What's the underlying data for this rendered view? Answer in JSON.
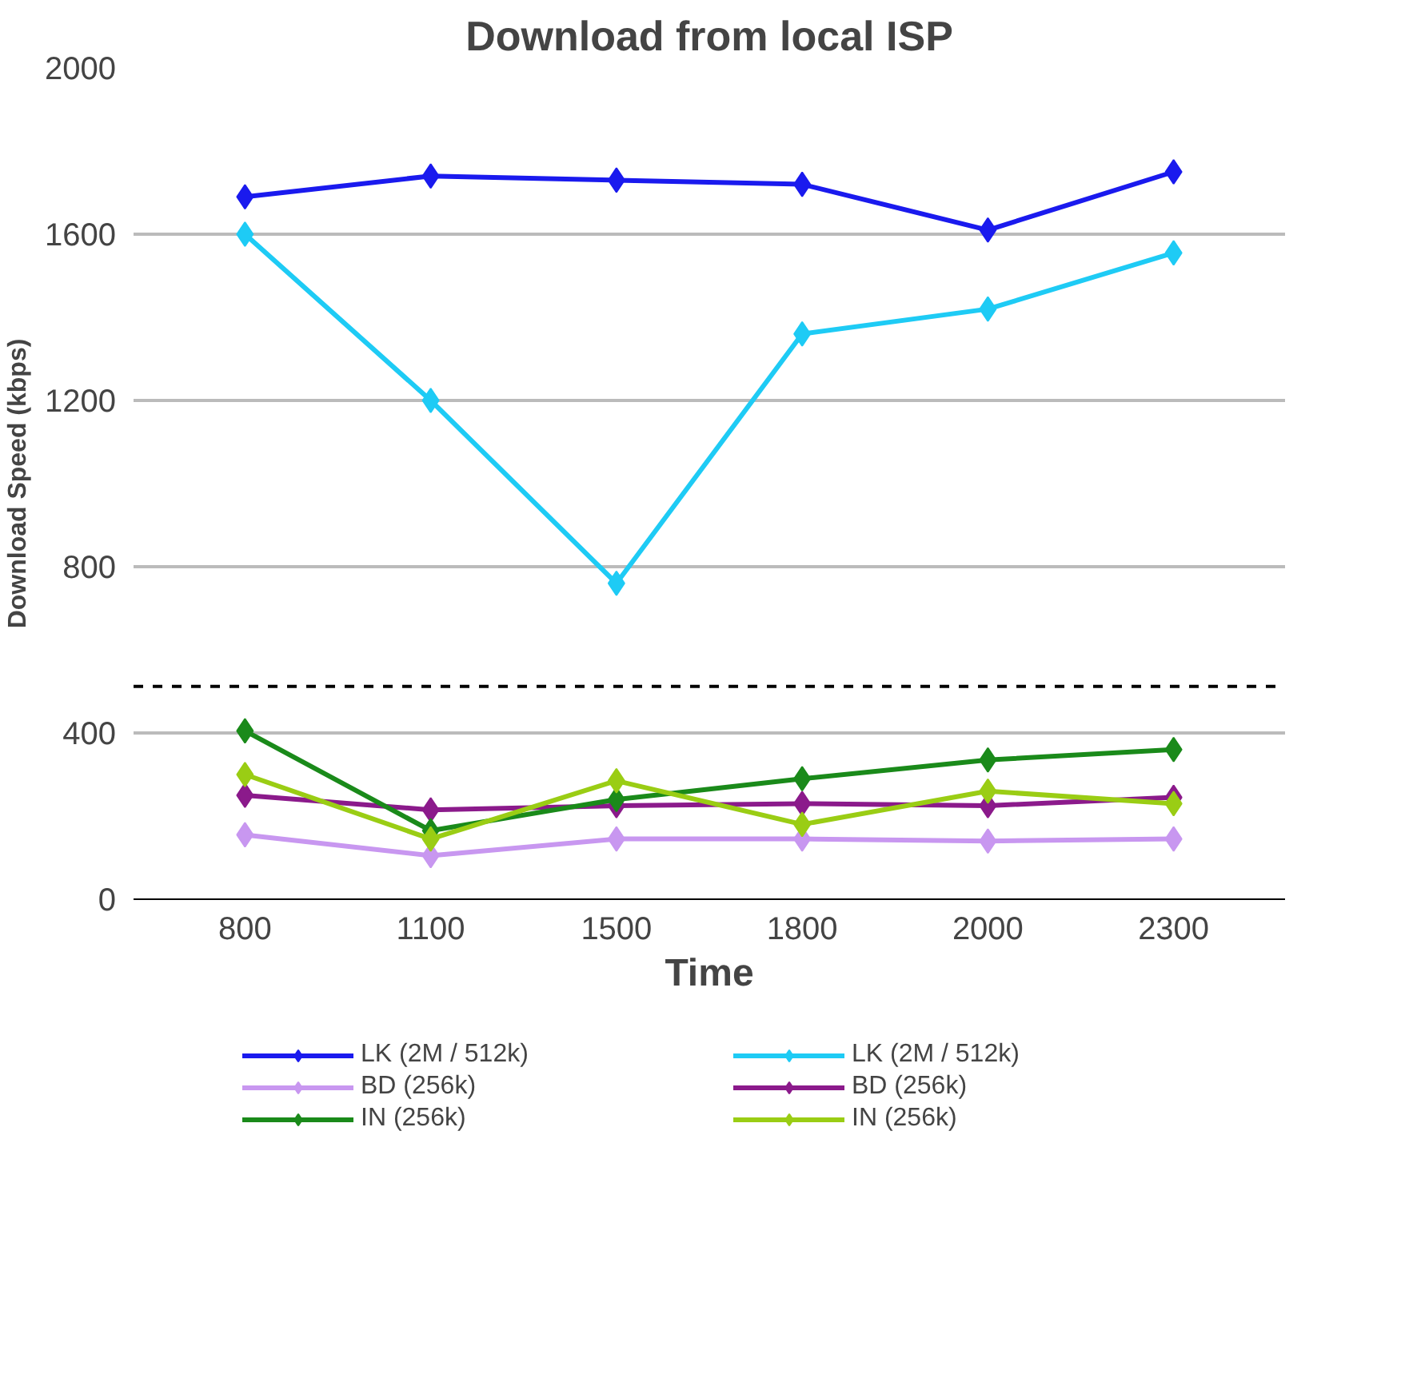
{
  "chart_data": {
    "type": "line",
    "title": "Download from local ISP",
    "xlabel": "Time",
    "ylabel": "Download Speed (kbps)",
    "categories": [
      "800",
      "1100",
      "1500",
      "1800",
      "2000",
      "2300"
    ],
    "ylim": [
      0,
      2000
    ],
    "yticks": [
      0,
      400,
      800,
      1200,
      1600,
      2000
    ],
    "grid": "y",
    "legend": "bottom",
    "marker": "diamond",
    "line_style": "solid",
    "ref_lines": [
      {
        "axis": "y",
        "value": 512,
        "label": null,
        "color": "#000000",
        "line_style": "dashed"
      }
    ],
    "series": [
      {
        "name": "LK (2M / 512k)",
        "color": "#1a1aee",
        "values": [
          1690,
          1740,
          1730,
          1720,
          1610,
          1750
        ]
      },
      {
        "name": "LK (2M / 512k)",
        "color": "#1ecbf5",
        "values": [
          1600,
          1200,
          760,
          1360,
          1420,
          1555
        ]
      },
      {
        "name": "BD (256k)",
        "color": "#c897f0",
        "values": [
          155,
          105,
          145,
          145,
          140,
          145
        ]
      },
      {
        "name": "BD (256k)",
        "color": "#8b1a8b",
        "values": [
          250,
          215,
          225,
          230,
          225,
          245
        ]
      },
      {
        "name": "IN (256k)",
        "color": "#1a8a1a",
        "values": [
          405,
          165,
          240,
          290,
          335,
          360
        ]
      },
      {
        "name": "IN (256k)",
        "color": "#9acd14",
        "values": [
          300,
          145,
          285,
          180,
          260,
          230
        ]
      }
    ]
  }
}
